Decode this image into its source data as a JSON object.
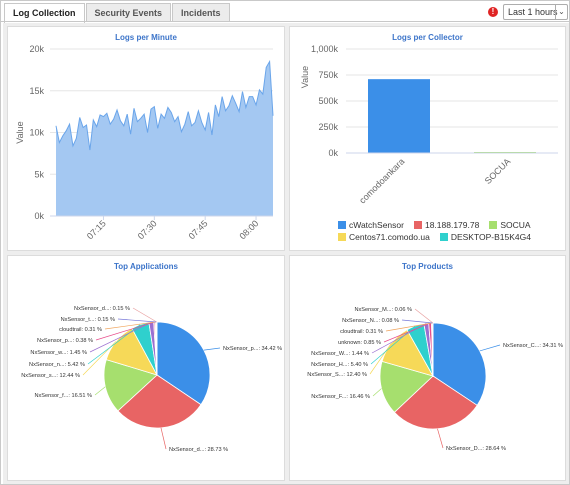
{
  "tabs": [
    {
      "label": "Log Collection",
      "active": true
    },
    {
      "label": "Security Events",
      "active": false
    },
    {
      "label": "Incidents",
      "active": false
    }
  ],
  "alert_icon": "!",
  "time_range": {
    "selected": "Last 1 hours",
    "arrow": "⌄"
  },
  "panels": {
    "logs_per_minute": {
      "title": "Logs per Minute"
    },
    "logs_per_collector": {
      "title": "Logs per Collector"
    },
    "top_applications": {
      "title": "Top Applications"
    },
    "top_products": {
      "title": "Top Products"
    }
  },
  "colors": {
    "blue": "#3b8fe8",
    "red": "#e86464",
    "green": "#a6df6e",
    "yellow": "#f6d958",
    "teal": "#2fd0cd",
    "purple": "#9b6fd1",
    "pink": "#e84c8b",
    "area_fill": "#a4c8f2",
    "area_line": "#6aa5ea",
    "title": "#3c74c9"
  },
  "chart_data": [
    {
      "type": "area",
      "title": "Logs per Minute",
      "xlabel": "",
      "ylabel": "Value",
      "ylim": [
        0,
        20000
      ],
      "yticks": [
        "0k",
        "5k",
        "10k",
        "15k",
        "20k"
      ],
      "xticks": [
        "07:15",
        "07:30",
        "07:45",
        "08:00"
      ],
      "grid": true,
      "values": [
        10800,
        8800,
        9600,
        10200,
        11000,
        8400,
        9300,
        11800,
        10600,
        10900,
        7900,
        11500,
        10700,
        12100,
        11900,
        12300,
        11000,
        11600,
        12700,
        11400,
        10800,
        12200,
        9800,
        12900,
        11300,
        11700,
        12200,
        10000,
        12800,
        13100,
        10500,
        12200,
        11700,
        13000,
        12400,
        11300,
        11900,
        10100,
        11000,
        12500,
        10800,
        11200,
        12600,
        11200,
        10300,
        12400,
        9700,
        13300,
        11900,
        14300,
        12600,
        13200,
        14400,
        13500,
        12500,
        14900,
        13000,
        14300,
        14300,
        13300,
        15100,
        14600,
        17800,
        18500,
        12000
      ]
    },
    {
      "type": "bar",
      "title": "Logs per Collector",
      "ylabel": "Value",
      "ylim": [
        0,
        1000000
      ],
      "yticks": [
        "0k",
        "250k",
        "500k",
        "750k",
        "1,000k"
      ],
      "categories": [
        "comodoankara",
        "SOCUA"
      ],
      "values": [
        710000,
        2000
      ],
      "legend": [
        "cWatchSensor",
        "18.188.179.78",
        "SOCUA",
        "Centos71.comodo.ua",
        "DESKTOP-B15K4G4"
      ],
      "grid": true
    },
    {
      "type": "pie",
      "title": "Top Applications",
      "slices": [
        {
          "label": "NxSensor_p...: 34.42 %",
          "value": 34.42
        },
        {
          "label": "NxSensor_d...: 28.73 %",
          "value": 28.73
        },
        {
          "label": "NxSensor_f...: 16.51 %",
          "value": 16.51
        },
        {
          "label": "NxSensor_s...: 12.44 %",
          "value": 12.44
        },
        {
          "label": "NxSensor_n...: 5.42 %",
          "value": 5.42
        },
        {
          "label": "NxSensor_w...: 1.45 %",
          "value": 1.45
        },
        {
          "label": "NxSensor_p...: 0.38 %",
          "value": 0.38
        },
        {
          "label": "cloudtrail: 0.31 %",
          "value": 0.31
        },
        {
          "label": "NxSensor_t...: 0.15 %",
          "value": 0.15
        },
        {
          "label": "NxSensor_d...: 0.15 %",
          "value": 0.15
        }
      ]
    },
    {
      "type": "pie",
      "title": "Top Products",
      "slices": [
        {
          "label": "NxSensor_C...: 34.31 %",
          "value": 34.31
        },
        {
          "label": "NxSensor_D...: 28.64 %",
          "value": 28.64
        },
        {
          "label": "NxSensor_F...: 16.46 %",
          "value": 16.46
        },
        {
          "label": "NxSensor_S...: 12.40 %",
          "value": 12.4
        },
        {
          "label": "NxSensor_H...: 5.40 %",
          "value": 5.4
        },
        {
          "label": "NxSensor_W...: 1.44 %",
          "value": 1.44
        },
        {
          "label": "unknown: 0.85 %",
          "value": 0.85
        },
        {
          "label": "cloudtrail: 0.31 %",
          "value": 0.31
        },
        {
          "label": "NxSensor_N...: 0.08 %",
          "value": 0.08
        },
        {
          "label": "NxSensor_M...: 0.06 %",
          "value": 0.06
        }
      ]
    }
  ]
}
